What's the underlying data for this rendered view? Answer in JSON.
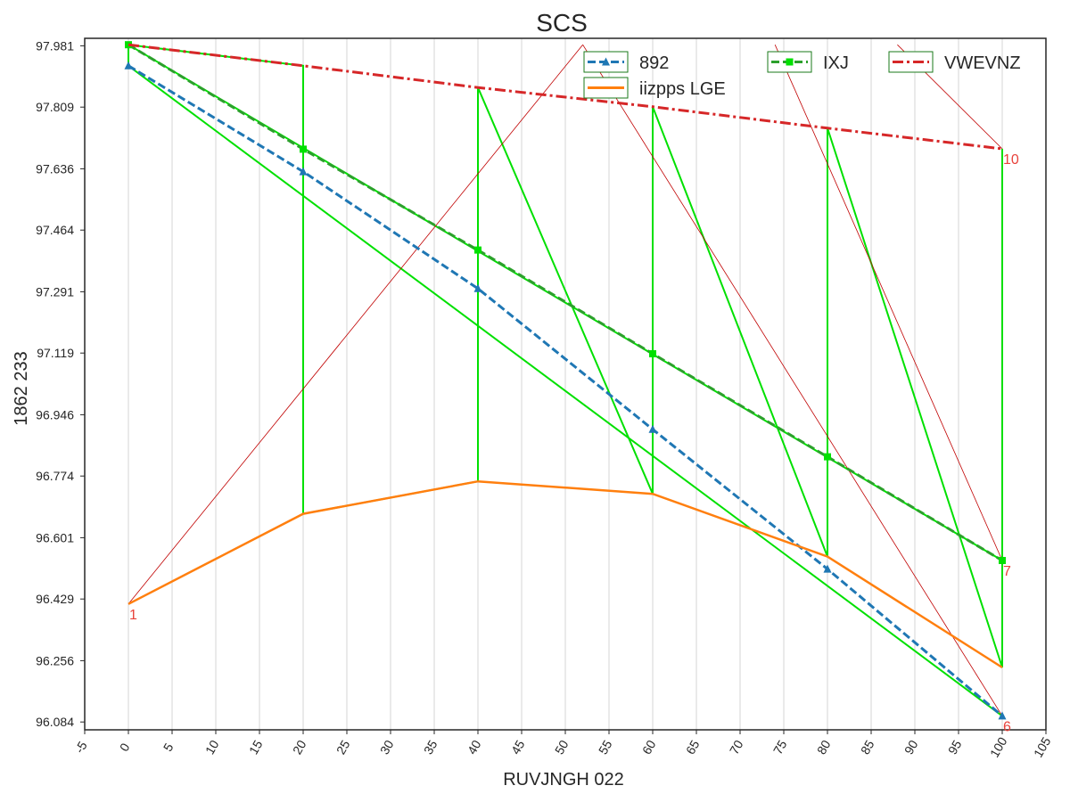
{
  "chart_data": {
    "type": "line",
    "title": "SCS",
    "xlabel": "RUVJNGH 022",
    "ylabel": "1862 233",
    "xlim": [
      -5,
      105
    ],
    "ylim": [
      96.062,
      98.002
    ],
    "x_ticks": [
      -5,
      0,
      5,
      10,
      15,
      20,
      25,
      30,
      35,
      40,
      45,
      50,
      55,
      60,
      65,
      70,
      75,
      80,
      85,
      90,
      95,
      100,
      105
    ],
    "y_ticks": [
      96.084,
      96.256,
      96.429,
      96.601,
      96.774,
      96.946,
      97.119,
      97.291,
      97.464,
      97.636,
      97.809,
      97.981
    ],
    "grid": "vertical",
    "legend_position": "top-right",
    "x": [
      0,
      20,
      40,
      60,
      80,
      100
    ],
    "series": [
      {
        "name": "892",
        "color": "#1f77b4",
        "style": "dashed",
        "marker": "triangle",
        "values": [
          97.925,
          97.628,
          97.3,
          96.905,
          96.513,
          96.101
        ]
      },
      {
        "name": "IXJ",
        "color": "#2ca02c",
        "style": "dashed",
        "marker": "square",
        "values": [
          97.984,
          97.691,
          97.408,
          97.117,
          96.828,
          96.537
        ]
      },
      {
        "name": "VWEVNZ",
        "color": "#d62728",
        "style": "dashdot",
        "marker": "none",
        "values": [
          97.984,
          97.925,
          97.864,
          97.81,
          97.75,
          97.692
        ]
      },
      {
        "name": "iizpps LGE",
        "color": "#ff7f0e",
        "style": "solid",
        "marker": "none",
        "values": [
          96.415,
          96.668,
          96.759,
          96.724,
          96.548,
          96.237
        ]
      }
    ],
    "green_overlay": {
      "color": "#00e000",
      "points": [
        [
          0,
          97.925
        ],
        [
          0,
          97.984
        ],
        [
          20,
          97.925
        ],
        [
          20,
          97.691
        ],
        [
          20,
          97.628
        ],
        [
          20,
          96.668
        ],
        [
          40,
          96.759
        ],
        [
          40,
          97.864
        ],
        [
          60,
          96.724
        ],
        [
          60,
          97.81
        ],
        [
          80,
          96.548
        ],
        [
          80,
          97.75
        ],
        [
          100,
          96.237
        ],
        [
          100,
          97.692
        ]
      ],
      "extra_lines": [
        [
          [
            0,
            97.984
          ],
          [
            100,
            96.537
          ]
        ],
        [
          [
            0,
            97.925
          ],
          [
            100,
            96.101
          ]
        ]
      ]
    },
    "red_annotation_lines": {
      "color": "#c00000",
      "lines": [
        [
          [
            0,
            96.415
          ],
          [
            52,
            97.984
          ]
        ],
        [
          [
            52,
            97.984
          ],
          [
            100,
            96.101
          ]
        ],
        [
          [
            74,
            97.984
          ],
          [
            100,
            96.537
          ]
        ],
        [
          [
            88,
            97.984
          ],
          [
            100,
            97.692
          ]
        ]
      ]
    },
    "annotations": [
      {
        "text": "1",
        "x": 0,
        "y": 96.415
      },
      {
        "text": "10",
        "x": 100,
        "y": 97.692
      },
      {
        "text": "7",
        "x": 100,
        "y": 96.537
      },
      {
        "text": "6",
        "x": 100,
        "y": 96.101
      }
    ],
    "annotation_color": "#e8423b"
  }
}
